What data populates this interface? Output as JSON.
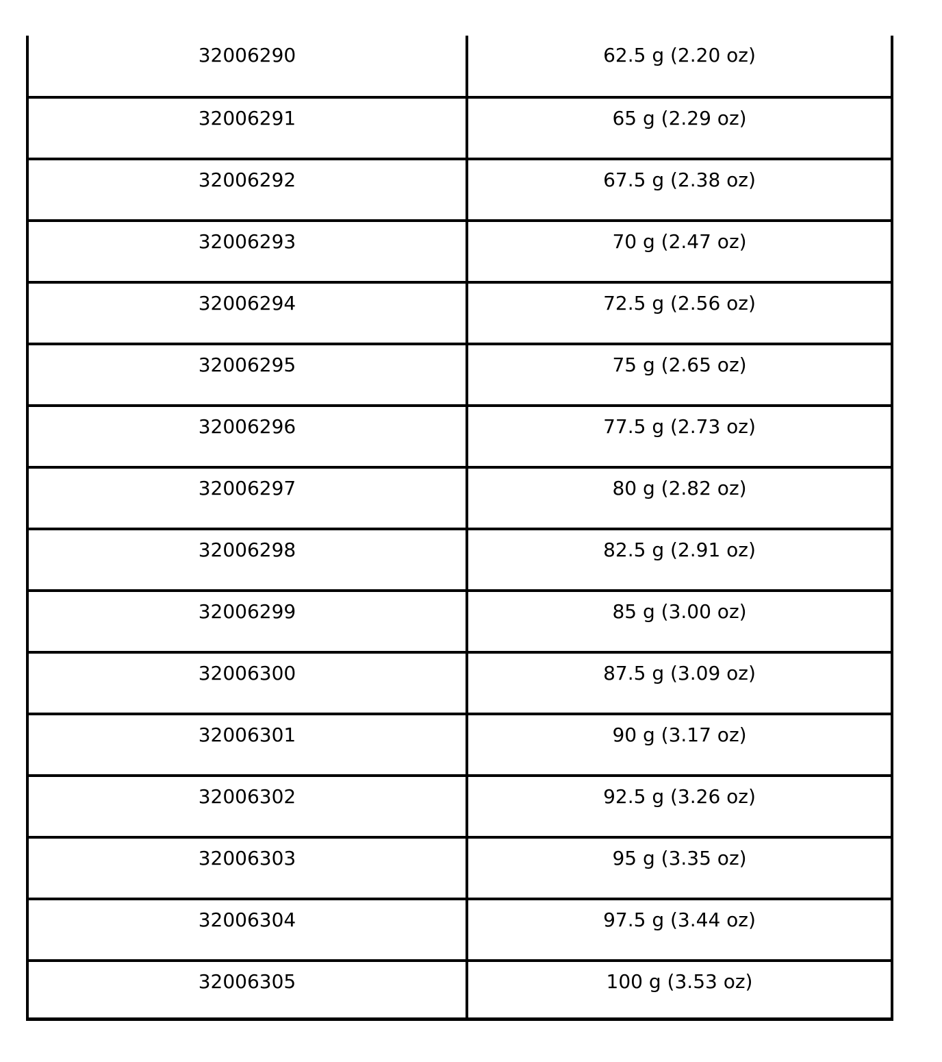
{
  "colors": {
    "background": "#ffffff",
    "border": "#000000",
    "text": "#000000"
  },
  "table": {
    "columns": [
      {
        "field": "code"
      },
      {
        "field": "weight"
      }
    ],
    "rows": [
      {
        "code": "32006290",
        "weight": "62.5 g (2.20 oz)"
      },
      {
        "code": "32006291",
        "weight": "65 g (2.29 oz)"
      },
      {
        "code": "32006292",
        "weight": "67.5 g (2.38 oz)"
      },
      {
        "code": "32006293",
        "weight": "70 g (2.47 oz)"
      },
      {
        "code": "32006294",
        "weight": "72.5 g (2.56 oz)"
      },
      {
        "code": "32006295",
        "weight": "75 g (2.65 oz)"
      },
      {
        "code": "32006296",
        "weight": "77.5 g (2.73 oz)"
      },
      {
        "code": "32006297",
        "weight": "80 g (2.82 oz)"
      },
      {
        "code": "32006298",
        "weight": "82.5 g (2.91 oz)"
      },
      {
        "code": "32006299",
        "weight": "85 g (3.00 oz)"
      },
      {
        "code": "32006300",
        "weight": "87.5 g (3.09 oz)"
      },
      {
        "code": "32006301",
        "weight": "90 g (3.17 oz)"
      },
      {
        "code": "32006302",
        "weight": "92.5 g (3.26 oz)"
      },
      {
        "code": "32006303",
        "weight": "95 g (3.35 oz)"
      },
      {
        "code": "32006304",
        "weight": "97.5 g (3.44 oz)"
      },
      {
        "code": "32006305",
        "weight": "100 g (3.53 oz)"
      }
    ]
  }
}
